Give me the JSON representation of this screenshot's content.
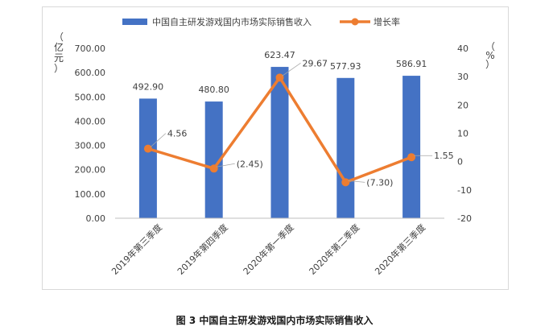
{
  "chart_data": {
    "type": "bar",
    "categories": [
      "2019年第三季度",
      "2019年第四季度",
      "2020年第一季度",
      "2020年第二季度",
      "2020年第三季度"
    ],
    "series": [
      {
        "name": "中国自主研发游戏国内市场实际销售收入",
        "type": "bar",
        "axis": "left",
        "values": [
          492.9,
          480.8,
          623.47,
          577.93,
          586.91
        ],
        "labels": [
          "492.90",
          "480.80",
          "623.47",
          "577.93",
          "586.91"
        ]
      },
      {
        "name": "增长率",
        "type": "line",
        "axis": "right",
        "values": [
          4.56,
          -2.45,
          29.67,
          -7.3,
          1.55
        ],
        "labels": [
          "4.56",
          "(2.45)",
          "29.67",
          "(7.30)",
          "1.55"
        ]
      }
    ],
    "y_left": {
      "unit_label": "（亿元）",
      "range": [
        0,
        700
      ],
      "ticks": [
        "0.00",
        "100.00",
        "200.00",
        "300.00",
        "400.00",
        "500.00",
        "600.00",
        "700.00"
      ]
    },
    "y_right": {
      "unit_label": "（%）",
      "range": [
        -20,
        40
      ],
      "ticks": [
        "-20",
        "-10",
        "0",
        "10",
        "20",
        "30",
        "40"
      ]
    },
    "legend_position": "top",
    "grid": false,
    "caption": "图 3  中国自主研发游戏国内市场实际销售收入",
    "colors": {
      "bar": "#4472c4",
      "line": "#ed7d31",
      "axis": "#bfbfbf"
    }
  }
}
